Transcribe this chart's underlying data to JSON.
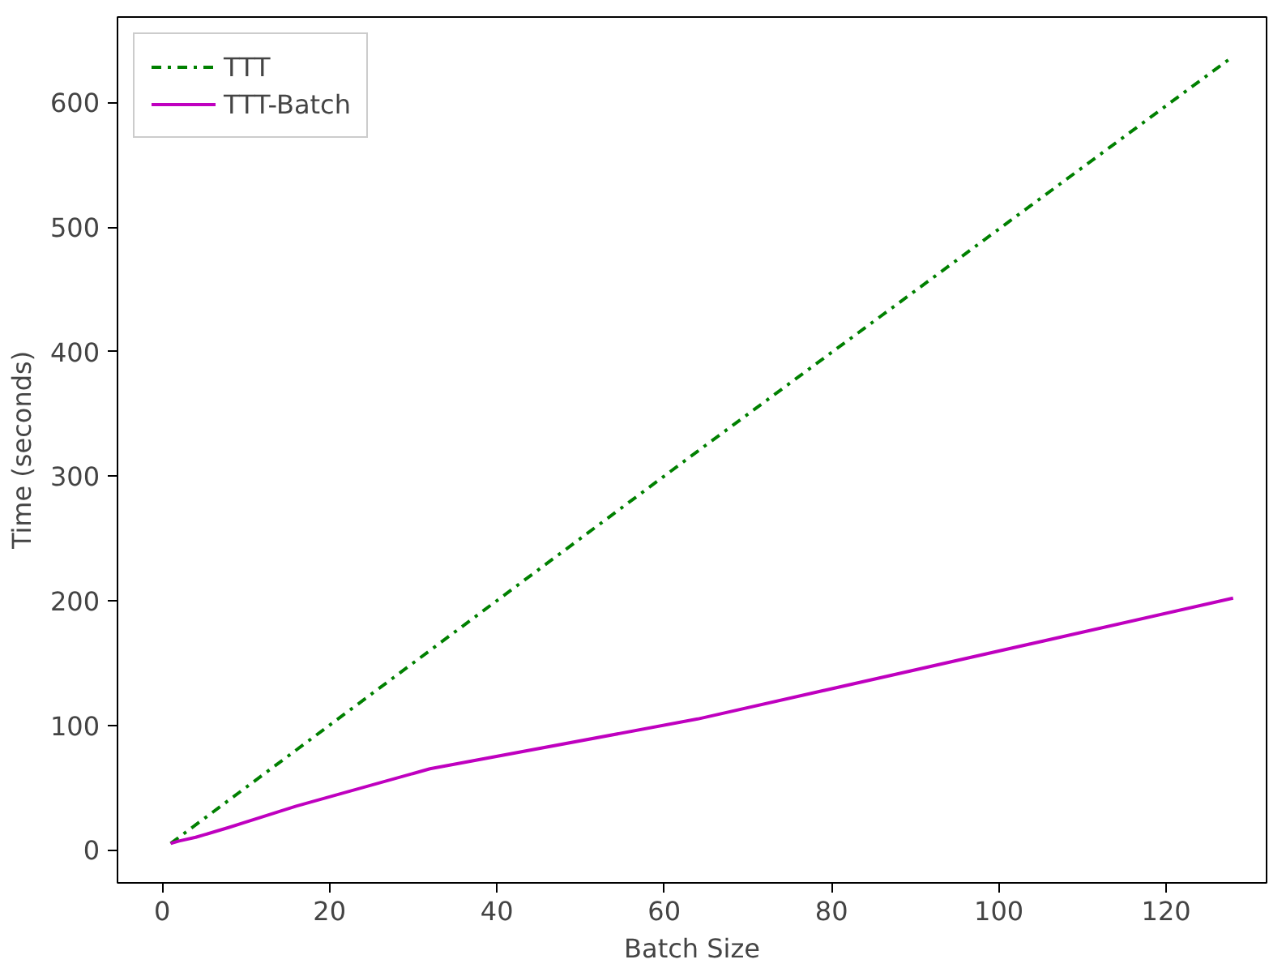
{
  "chart_data": {
    "type": "line",
    "xlabel": "Batch Size",
    "ylabel": "Time (seconds)",
    "x": [
      1,
      2,
      4,
      8,
      16,
      32,
      64,
      128
    ],
    "series": [
      {
        "name": "TTT",
        "color": "#008000",
        "line_style": "dashdot",
        "values": [
          5,
          10,
          20,
          40,
          80,
          160,
          320,
          637
        ]
      },
      {
        "name": "TTT-Batch",
        "color": "#bf00bf",
        "line_style": "solid",
        "values": [
          5,
          7,
          10,
          18,
          35,
          65,
          105,
          202
        ]
      }
    ],
    "xlim": [
      -5.35,
      132
    ],
    "ylim": [
      -26.6,
      668.6
    ],
    "xticks": [
      0,
      20,
      40,
      60,
      80,
      100,
      120
    ],
    "yticks": [
      0,
      100,
      200,
      300,
      400,
      500,
      600
    ],
    "grid": false,
    "legend": "top left",
    "marker": "none"
  }
}
